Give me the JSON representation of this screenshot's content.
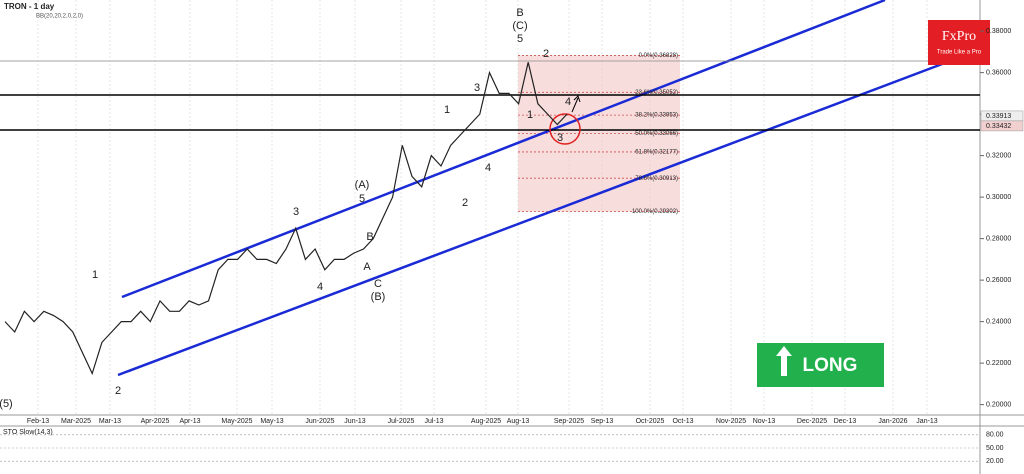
{
  "chart_data": {
    "type": "line",
    "title": "TRON - 1 day",
    "subtitle": "BB(20,20,2,0,2,0)",
    "series": [
      {
        "name": "TRON",
        "color": "#222222",
        "values": [
          0.24,
          0.235,
          0.245,
          0.24,
          0.245,
          0.243,
          0.24,
          0.235,
          0.225,
          0.215,
          0.23,
          0.235,
          0.24,
          0.24,
          0.245,
          0.24,
          0.25,
          0.245,
          0.245,
          0.25,
          0.248,
          0.25,
          0.265,
          0.27,
          0.27,
          0.275,
          0.27,
          0.27,
          0.268,
          0.275,
          0.285,
          0.27,
          0.275,
          0.265,
          0.27,
          0.27,
          0.273,
          0.275,
          0.28,
          0.29,
          0.3,
          0.325,
          0.31,
          0.305,
          0.32,
          0.315,
          0.325,
          0.33,
          0.335,
          0.34,
          0.36,
          0.35,
          0.35,
          0.345,
          0.365,
          0.345,
          0.34,
          0.335,
          0.34
        ]
      }
    ],
    "ylim": [
      0.195,
      0.395
    ],
    "yticks": [
      {
        "value": 0.2,
        "label": "0.20000"
      },
      {
        "value": 0.22,
        "label": "0.22000"
      },
      {
        "value": 0.24,
        "label": "0.24000"
      },
      {
        "value": 0.26,
        "label": "0.26000"
      },
      {
        "value": 0.28,
        "label": "0.28000"
      },
      {
        "value": 0.3,
        "label": "0.30000"
      },
      {
        "value": 0.32,
        "label": "0.32000"
      },
      {
        "value": 0.34,
        "label": "0.34000"
      },
      {
        "value": 0.36,
        "label": "0.36000"
      },
      {
        "value": 0.38,
        "label": "0.38000"
      }
    ],
    "x_labels": [
      "Feb-13",
      "Mar-2025",
      "Mar-13",
      "Apr-2025",
      "Apr-13",
      "May-2025",
      "May-13",
      "Jun-2025",
      "Jun-13",
      "Jul-2025",
      "Jul-13",
      "Aug-2025",
      "Aug-13",
      "Sep-2025",
      "Sep-13",
      "Oct-2025",
      "Oct-13",
      "Nov-2025",
      "Nov-13",
      "Dec-2025",
      "Dec-13",
      "Jan-2026",
      "Jan-13"
    ],
    "fib_levels": [
      {
        "value": 0.36828,
        "label": "0.0%(0.36828)"
      },
      {
        "value": 0.35052,
        "label": "23.6%(0.35052)"
      },
      {
        "value": 0.33953,
        "label": "38.2%(0.33953)"
      },
      {
        "value": 0.33066,
        "label": "50.0%(0.33066)"
      },
      {
        "value": 0.32177,
        "label": "61.8%(0.32177)"
      },
      {
        "value": 0.30913,
        "label": "78.6%(0.30913)"
      },
      {
        "value": 0.29302,
        "label": "100.0%(0.29302)"
      }
    ],
    "price_tags": [
      {
        "value": 0.33913,
        "label": "0.33913"
      },
      {
        "value": 0.33432,
        "label": "0.33432"
      }
    ],
    "wave_labels": [
      "(5)",
      "1",
      "2",
      "3",
      "4",
      "(A)",
      "5",
      "B",
      "A",
      "C",
      "(B)",
      "1",
      "3",
      "2",
      "4",
      "5",
      "(C)",
      "B",
      "2",
      "1",
      "4",
      "3"
    ],
    "oscillator": {
      "name": "STO Slow(14,3)",
      "ylim": [
        0,
        100
      ],
      "yticks": [
        {
          "value": 80,
          "label": "80.00"
        },
        {
          "value": 50,
          "label": "50.00"
        },
        {
          "value": 20,
          "label": "20.00"
        }
      ]
    },
    "logo": {
      "name": "FxPro",
      "tagline": "Trade Like a Pro"
    },
    "signal": "LONG"
  }
}
